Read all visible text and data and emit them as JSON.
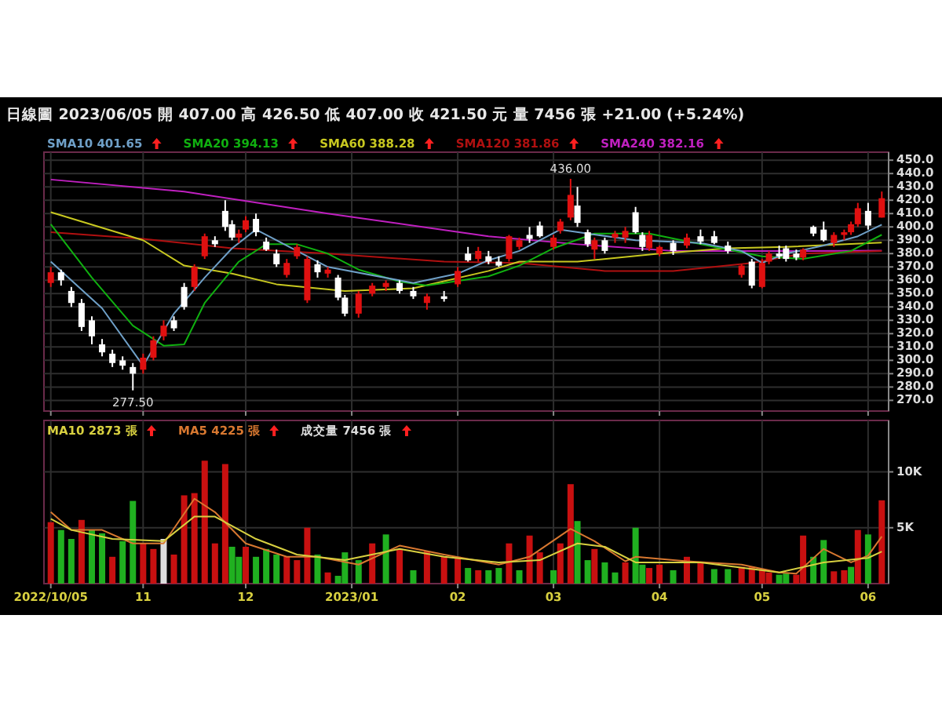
{
  "chart_data": [
    {
      "type": "candlestick",
      "title": "日線圖  2023/06/05  開 407.00  高 426.50  低 407.00  收 421.50  元  量 7456 張  +21.00 (+5.24%)",
      "xlim": [
        "2022-10-03",
        "2023-06-07"
      ],
      "xticks": [
        {
          "value": "2022-10-05",
          "label": null
        },
        {
          "value": "2022-11-01",
          "label": null
        },
        {
          "value": "2022-12-01",
          "label": null
        },
        {
          "value": "2023-01-01",
          "label": null
        },
        {
          "value": "2023-02-01",
          "label": null
        },
        {
          "value": "2023-03-01",
          "label": null
        },
        {
          "value": "2023-04-01",
          "label": null
        },
        {
          "value": "2023-05-01",
          "label": null
        },
        {
          "value": "2023-06-01",
          "label": null
        }
      ],
      "ylim": [
        262,
        456
      ],
      "yticks": [
        {
          "value": 270,
          "label": "270.0"
        },
        {
          "value": 280,
          "label": "280.0"
        },
        {
          "value": 290,
          "label": "290.0"
        },
        {
          "value": 300,
          "label": "300.0"
        },
        {
          "value": 310,
          "label": "310.0"
        },
        {
          "value": 320,
          "label": "320.0"
        },
        {
          "value": 330,
          "label": "330.0"
        },
        {
          "value": 340,
          "label": "340.0"
        },
        {
          "value": 350,
          "label": "350.0"
        },
        {
          "value": 360,
          "label": "360.0"
        },
        {
          "value": 370,
          "label": "370.0"
        },
        {
          "value": 380,
          "label": "380.0"
        },
        {
          "value": 390,
          "label": "390.0"
        },
        {
          "value": 400,
          "label": "400.0"
        },
        {
          "value": 410,
          "label": "410.0"
        },
        {
          "value": 420,
          "label": "420.0"
        },
        {
          "value": 430,
          "label": "430.0"
        },
        {
          "value": 440,
          "label": "440.0"
        },
        {
          "value": 450,
          "label": "450.0"
        }
      ],
      "tick_labels": "y",
      "grid": true,
      "legend": "top left",
      "annotations": [
        {
          "text": "436.00",
          "x": "2023-03-06",
          "y": 436
        },
        {
          "text": "277.50",
          "x": "2022-10-29",
          "y": 277.5
        }
      ],
      "series": [
        {
          "type": "line",
          "name": "SMA240 382.16",
          "color": "#c020c0",
          "x": [
            "2022-10-05",
            "2022-11-13",
            "2022-12-25",
            "2023-02-10",
            "2023-03-08",
            "2023-04-05",
            "2023-05-13",
            "2023-06-05"
          ],
          "values": [
            435.5,
            426.5,
            410,
            393,
            387,
            382,
            382,
            382.16
          ]
        },
        {
          "type": "line",
          "name": "SMA120 381.86",
          "color": "#b01010",
          "x": [
            "2022-10-05",
            "2022-11-01",
            "2022-11-27",
            "2022-12-25",
            "2023-01-28",
            "2023-02-19",
            "2023-03-16",
            "2023-04-05",
            "2023-04-28",
            "2023-05-13",
            "2023-06-05"
          ],
          "values": [
            396,
            391,
            384,
            380,
            374,
            373,
            367,
            367,
            373,
            380,
            381.86
          ]
        },
        {
          "type": "line",
          "name": "SMA60 388.28",
          "color": "#c8c820",
          "x": [
            "2022-10-05",
            "2022-11-01",
            "2022-11-13",
            "2022-11-27",
            "2022-12-10",
            "2022-12-30",
            "2023-01-19",
            "2023-02-10",
            "2023-02-19",
            "2023-03-08",
            "2023-04-01",
            "2023-04-21",
            "2023-05-08",
            "2023-06-05"
          ],
          "values": [
            411,
            390,
            371,
            365,
            357,
            352,
            354,
            367,
            374,
            374,
            380,
            384,
            385,
            388.28
          ]
        },
        {
          "type": "line",
          "name": "SMA20 394.13",
          "color": "#10b010",
          "x": [
            "2022-10-05",
            "2022-10-17",
            "2022-10-29",
            "2022-11-07",
            "2022-11-13",
            "2022-11-19",
            "2022-11-29",
            "2022-12-07",
            "2022-12-16",
            "2022-12-25",
            "2023-01-03",
            "2023-01-15",
            "2023-01-23",
            "2023-02-10",
            "2023-02-19",
            "2023-03-01",
            "2023-03-13",
            "2023-03-29",
            "2023-04-17",
            "2023-05-01",
            "2023-05-13",
            "2023-05-27",
            "2023-06-05"
          ],
          "values": [
            402,
            362,
            326,
            311,
            312,
            343,
            374,
            387,
            387,
            380,
            368,
            359,
            356,
            363,
            371,
            384,
            395,
            395,
            385,
            378,
            376,
            382,
            394.13
          ]
        },
        {
          "type": "line",
          "name": "SMA10 401.65",
          "color": "#6fa0c8",
          "x": [
            "2022-10-05",
            "2022-10-20",
            "2022-11-01",
            "2022-11-10",
            "2022-11-19",
            "2022-11-27",
            "2022-12-04",
            "2022-12-16",
            "2022-12-25",
            "2023-01-19",
            "2023-02-01",
            "2023-02-10",
            "2023-02-19",
            "2023-03-03",
            "2023-03-11",
            "2023-03-25",
            "2023-04-13",
            "2023-04-25",
            "2023-05-01",
            "2023-05-08",
            "2023-05-19",
            "2023-05-29",
            "2023-06-05"
          ],
          "values": [
            374,
            339,
            296,
            335,
            362,
            384,
            398,
            382,
            370,
            358,
            365,
            375,
            382,
            398,
            395,
            390,
            388,
            382,
            373,
            380,
            386,
            393,
            401.65
          ]
        },
        {
          "type": "candlestick",
          "x": [
            "2022-10-05",
            "2022-10-08",
            "2022-10-11",
            "2022-10-14",
            "2022-10-17",
            "2022-10-20",
            "2022-10-23",
            "2022-10-26",
            "2022-10-29",
            "2022-11-01",
            "2022-11-04",
            "2022-11-07",
            "2022-11-10",
            "2022-11-13",
            "2022-11-16",
            "2022-11-19",
            "2022-11-22",
            "2022-11-25",
            "2022-11-27",
            "2022-11-29",
            "2022-12-01",
            "2022-12-04",
            "2022-12-07",
            "2022-12-10",
            "2022-12-13",
            "2022-12-16",
            "2022-12-19",
            "2022-12-22",
            "2022-12-25",
            "2022-12-28",
            "2022-12-30",
            "2023-01-03",
            "2023-01-07",
            "2023-01-11",
            "2023-01-15",
            "2023-01-19",
            "2023-01-23",
            "2023-01-28",
            "2023-02-01",
            "2023-02-04",
            "2023-02-07",
            "2023-02-10",
            "2023-02-13",
            "2023-02-16",
            "2023-02-19",
            "2023-02-22",
            "2023-02-25",
            "2023-03-01",
            "2023-03-03",
            "2023-03-06",
            "2023-03-08",
            "2023-03-11",
            "2023-03-13",
            "2023-03-16",
            "2023-03-19",
            "2023-03-22",
            "2023-03-25",
            "2023-03-27",
            "2023-03-29",
            "2023-04-01",
            "2023-04-05",
            "2023-04-09",
            "2023-04-13",
            "2023-04-17",
            "2023-04-21",
            "2023-04-25",
            "2023-04-28",
            "2023-05-01",
            "2023-05-03",
            "2023-05-06",
            "2023-05-08",
            "2023-05-11",
            "2023-05-13",
            "2023-05-16",
            "2023-05-19",
            "2023-05-22",
            "2023-05-25",
            "2023-05-27",
            "2023-05-29",
            "2023-06-01",
            "2023-06-05"
          ],
          "ohlc": [
            [
              358,
              370,
              355,
              366
            ],
            [
              366,
              368,
              356,
              360
            ],
            [
              352,
              355,
              340,
              343
            ],
            [
              343,
              346,
              322,
              325
            ],
            [
              330,
              333,
              312,
              318
            ],
            [
              312,
              316,
              303,
              306
            ],
            [
              305,
              308,
              295,
              298
            ],
            [
              300,
              303,
              293,
              296
            ],
            [
              295,
              298,
              277.5,
              290
            ],
            [
              293,
              305,
              290,
              302
            ],
            [
              302,
              318,
              300,
              315
            ],
            [
              318,
              330,
              315,
              326
            ],
            [
              330,
              333,
              322,
              324
            ],
            [
              355,
              358,
              338,
              340
            ],
            [
              355,
              372,
              352,
              370
            ],
            [
              378,
              395,
              376,
              393
            ],
            [
              390,
              393,
              385,
              387
            ],
            [
              412,
              420,
              397,
              400
            ],
            [
              402,
              405,
              390,
              392
            ],
            [
              392,
              398,
              388,
              395
            ],
            [
              398,
              408,
              396,
              405
            ],
            [
              406,
              410,
              393,
              396
            ],
            [
              389,
              392,
              382,
              383
            ],
            [
              380,
              383,
              370,
              372
            ],
            [
              364,
              376,
              362,
              373
            ],
            [
              378,
              387,
              376,
              385
            ],
            [
              345,
              378,
              343,
              376
            ],
            [
              372,
              375,
              362,
              366
            ],
            [
              365,
              370,
              362,
              368
            ],
            [
              362,
              364,
              345,
              347
            ],
            [
              347,
              349,
              333,
              335
            ],
            [
              335,
              352,
              332,
              350
            ],
            [
              350,
              358,
              348,
              356
            ],
            [
              355,
              360,
              352,
              358
            ],
            [
              358,
              360,
              350,
              352
            ],
            [
              352,
              355,
              346,
              348
            ],
            [
              343,
              350,
              338,
              348
            ],
            [
              348,
              352,
              344,
              346
            ],
            [
              357,
              370,
              355,
              367
            ],
            [
              380,
              385,
              374,
              375
            ],
            [
              376,
              385,
              374,
              382
            ],
            [
              378,
              382,
              372,
              374
            ],
            [
              374,
              378,
              370,
              371
            ],
            [
              376,
              394,
              374,
              393
            ],
            [
              385,
              392,
              383,
              390
            ],
            [
              394,
              400,
              388,
              391
            ],
            [
              401,
              404,
              392,
              393
            ],
            [
              385,
              394,
              383,
              392
            ],
            [
              397,
              406,
              395,
              404
            ],
            [
              407,
              436,
              405,
              424
            ],
            [
              416,
              430,
              400,
              403
            ],
            [
              396,
              398,
              385,
              387
            ],
            [
              383,
              392,
              376,
              390
            ],
            [
              390,
              392,
              380,
              382
            ],
            [
              392,
              397,
              388,
              395
            ],
            [
              392,
              400,
              388,
              397
            ],
            [
              411,
              415,
              395,
              396
            ],
            [
              394,
              396,
              382,
              385
            ],
            [
              384,
              397,
              382,
              394
            ],
            [
              380,
              386,
              378,
              385
            ],
            [
              388,
              390,
              379,
              382
            ],
            [
              386,
              395,
              384,
              392
            ],
            [
              393,
              398,
              387,
              389
            ],
            [
              393,
              397,
              387,
              388
            ],
            [
              386,
              389,
              380,
              382
            ],
            [
              364,
              372,
              362,
              371
            ],
            [
              374,
              376,
              354,
              356
            ],
            [
              355,
              376,
              354,
              373
            ],
            [
              374,
              382,
              372,
              380
            ],
            [
              380,
              386,
              376,
              378
            ],
            [
              384,
              386,
              374,
              376
            ],
            [
              380,
              383,
              375,
              377
            ],
            [
              377,
              384,
              375,
              383
            ],
            [
              400,
              401,
              393,
              395
            ],
            [
              398,
              404,
              389,
              390
            ],
            [
              388,
              396,
              385,
              394
            ],
            [
              394,
              398,
              390,
              396
            ],
            [
              396,
              404,
              394,
              402
            ],
            [
              402,
              418,
              400,
              414
            ],
            [
              412,
              418,
              398,
              401
            ],
            [
              407,
              426.5,
              407,
              421.5
            ]
          ],
          "colors": [
            "#e01010",
            "#ffffff",
            "#ffffff",
            "#ffffff",
            "#ffffff",
            "#ffffff",
            "#ffffff",
            "#ffffff",
            "#ffffff",
            "#e01010",
            "#e01010",
            "#e01010",
            "#ffffff",
            "#ffffff",
            "#e01010",
            "#e01010",
            "#ffffff",
            "#ffffff",
            "#ffffff",
            "#e01010",
            "#e01010",
            "#ffffff",
            "#ffffff",
            "#ffffff",
            "#e01010",
            "#e01010",
            "#e01010",
            "#ffffff",
            "#e01010",
            "#ffffff",
            "#ffffff",
            "#e01010",
            "#e01010",
            "#e01010",
            "#ffffff",
            "#ffffff",
            "#e01010",
            "#ffffff",
            "#e01010",
            "#ffffff",
            "#e01010",
            "#ffffff",
            "#ffffff",
            "#e01010",
            "#e01010",
            "#ffffff",
            "#ffffff",
            "#e01010",
            "#e01010",
            "#e01010",
            "#ffffff",
            "#ffffff",
            "#e01010",
            "#ffffff",
            "#e01010",
            "#e01010",
            "#ffffff",
            "#ffffff",
            "#e01010",
            "#e01010",
            "#ffffff",
            "#e01010",
            "#ffffff",
            "#ffffff",
            "#ffffff",
            "#e01010",
            "#ffffff",
            "#e01010",
            "#e01010",
            "#ffffff",
            "#ffffff",
            "#ffffff",
            "#e01010",
            "#ffffff",
            "#ffffff",
            "#e01010",
            "#e01010",
            "#e01010",
            "#e01010",
            "#ffffff",
            "#e01010"
          ]
        }
      ]
    },
    {
      "type": "bar",
      "xlim": [
        "2022-10-03",
        "2023-06-07"
      ],
      "xticks": [
        {
          "value": "2022-10-05",
          "label": "2022/10/05"
        },
        {
          "value": "2022-11-01",
          "label": "11"
        },
        {
          "value": "2022-12-01",
          "label": "12"
        },
        {
          "value": "2023-01-01",
          "label": "2023/01"
        },
        {
          "value": "2023-02-01",
          "label": "02"
        },
        {
          "value": "2023-03-01",
          "label": "03"
        },
        {
          "value": "2023-04-01",
          "label": "04"
        },
        {
          "value": "2023-05-01",
          "label": "05"
        },
        {
          "value": "2023-06-01",
          "label": "06"
        }
      ],
      "ylim": [
        0,
        14600
      ],
      "yticks": [
        {
          "value": 5000,
          "label": "5K"
        },
        {
          "value": 10000,
          "label": "10K"
        }
      ],
      "grid": true,
      "legend": "top left",
      "series": [
        {
          "type": "bar",
          "name": "成交量 7456 張",
          "color": "#dddddd",
          "x": [
            "2022-10-05",
            "2022-10-08",
            "2022-10-11",
            "2022-10-14",
            "2022-10-17",
            "2022-10-20",
            "2022-10-23",
            "2022-10-26",
            "2022-10-29",
            "2022-11-01",
            "2022-11-04",
            "2022-11-07",
            "2022-11-10",
            "2022-11-13",
            "2022-11-16",
            "2022-11-19",
            "2022-11-22",
            "2022-11-25",
            "2022-11-27",
            "2022-11-29",
            "2022-12-01",
            "2022-12-04",
            "2022-12-07",
            "2022-12-10",
            "2022-12-13",
            "2022-12-16",
            "2022-12-19",
            "2022-12-22",
            "2022-12-25",
            "2022-12-28",
            "2022-12-30",
            "2023-01-03",
            "2023-01-07",
            "2023-01-11",
            "2023-01-15",
            "2023-01-19",
            "2023-01-23",
            "2023-01-28",
            "2023-02-01",
            "2023-02-04",
            "2023-02-07",
            "2023-02-10",
            "2023-02-13",
            "2023-02-16",
            "2023-02-19",
            "2023-02-22",
            "2023-02-25",
            "2023-03-01",
            "2023-03-03",
            "2023-03-06",
            "2023-03-08",
            "2023-03-11",
            "2023-03-13",
            "2023-03-16",
            "2023-03-19",
            "2023-03-22",
            "2023-03-25",
            "2023-03-27",
            "2023-03-29",
            "2023-04-01",
            "2023-04-05",
            "2023-04-09",
            "2023-04-13",
            "2023-04-17",
            "2023-04-21",
            "2023-04-25",
            "2023-04-28",
            "2023-05-01",
            "2023-05-03",
            "2023-05-06",
            "2023-05-08",
            "2023-05-11",
            "2023-05-13",
            "2023-05-16",
            "2023-05-19",
            "2023-05-22",
            "2023-05-25",
            "2023-05-27",
            "2023-05-29",
            "2023-06-01",
            "2023-06-05"
          ],
          "values": [
            5500,
            4800,
            4000,
            5700,
            4800,
            4500,
            2400,
            3800,
            7400,
            3600,
            3100,
            4000,
            2600,
            7900,
            8100,
            11000,
            3600,
            10700,
            3300,
            2400,
            3300,
            2400,
            3100,
            2600,
            2400,
            2100,
            5000,
            2600,
            1000,
            700,
            2800,
            2100,
            3600,
            4400,
            3100,
            1200,
            2900,
            2400,
            2400,
            1400,
            1200,
            1200,
            1400,
            3600,
            1200,
            4300,
            2800,
            1200,
            3600,
            8900,
            5600,
            2100,
            3100,
            1900,
            1000,
            1900,
            5000,
            1700,
            1400,
            1700,
            1200,
            2400,
            1900,
            1300,
            1300,
            1500,
            1500,
            1300,
            1000,
            800,
            900,
            800,
            4300,
            2400,
            3900,
            1100,
            1200,
            1500,
            4800,
            4400,
            7456
          ],
          "colors": [
            "#c81010",
            "#20b020",
            "#20b020",
            "#c81010",
            "#20b020",
            "#20b020",
            "#c81010",
            "#20b020",
            "#20b020",
            "#c81010",
            "#c81010",
            "#dddddd",
            "#c81010",
            "#c81010",
            "#c81010",
            "#c81010",
            "#c81010",
            "#c81010",
            "#20b020",
            "#20b020",
            "#c81010",
            "#20b020",
            "#20b020",
            "#20b020",
            "#c81010",
            "#c81010",
            "#c81010",
            "#20b020",
            "#c81010",
            "#20b020",
            "#20b020",
            "#20b020",
            "#c81010",
            "#20b020",
            "#c81010",
            "#20b020",
            "#c81010",
            "#c81010",
            "#c81010",
            "#20b020",
            "#c81010",
            "#20b020",
            "#20b020",
            "#c81010",
            "#20b020",
            "#c81010",
            "#c81010",
            "#20b020",
            "#c81010",
            "#c81010",
            "#20b020",
            "#20b020",
            "#c81010",
            "#20b020",
            "#20b020",
            "#c81010",
            "#20b020",
            "#20b020",
            "#c81010",
            "#c81010",
            "#20b020",
            "#c81010",
            "#c81010",
            "#20b020",
            "#20b020",
            "#c81010",
            "#c81010",
            "#c81010",
            "#c81010",
            "#20b020",
            "#20b020",
            "#c81010",
            "#c81010",
            "#20b020",
            "#20b020",
            "#c81010",
            "#c81010",
            "#20b020",
            "#c81010",
            "#20b020",
            "#c81010"
          ]
        },
        {
          "type": "line",
          "name": "MA5 4225 張",
          "color": "#d87830",
          "x": [
            "2022-10-05",
            "2022-10-11",
            "2022-10-20",
            "2022-10-29",
            "2022-11-07",
            "2022-11-16",
            "2022-11-22",
            "2022-12-01",
            "2022-12-13",
            "2022-12-22",
            "2023-01-03",
            "2023-01-15",
            "2023-01-28",
            "2023-02-13",
            "2023-02-22",
            "2023-03-06",
            "2023-03-13",
            "2023-03-22",
            "2023-03-25",
            "2023-04-09",
            "2023-04-25",
            "2023-05-06",
            "2023-05-11",
            "2023-05-19",
            "2023-05-27",
            "2023-06-01",
            "2023-06-05"
          ],
          "values": [
            6400,
            4800,
            4800,
            3600,
            3600,
            7600,
            6400,
            3600,
            2400,
            2400,
            1700,
            3400,
            2600,
            1700,
            2400,
            4900,
            3800,
            2000,
            2400,
            2000,
            1700,
            1000,
            900,
            3100,
            1900,
            2500,
            4225
          ]
        },
        {
          "type": "line",
          "name": "MA10 2873 張",
          "color": "#d8d040",
          "x": [
            "2022-10-05",
            "2022-10-11",
            "2022-10-23",
            "2022-11-07",
            "2022-11-16",
            "2022-11-22",
            "2022-12-04",
            "2022-12-16",
            "2022-12-30",
            "2023-01-15",
            "2023-01-28",
            "2023-02-13",
            "2023-02-25",
            "2023-03-08",
            "2023-03-16",
            "2023-03-25",
            "2023-04-13",
            "2023-05-06",
            "2023-05-19",
            "2023-06-01",
            "2023-06-05"
          ],
          "values": [
            5800,
            4800,
            4000,
            3800,
            6000,
            6000,
            4000,
            2600,
            2100,
            3100,
            2400,
            1900,
            2100,
            3600,
            3300,
            1900,
            1900,
            1000,
            1900,
            2300,
            2873
          ]
        }
      ]
    }
  ]
}
